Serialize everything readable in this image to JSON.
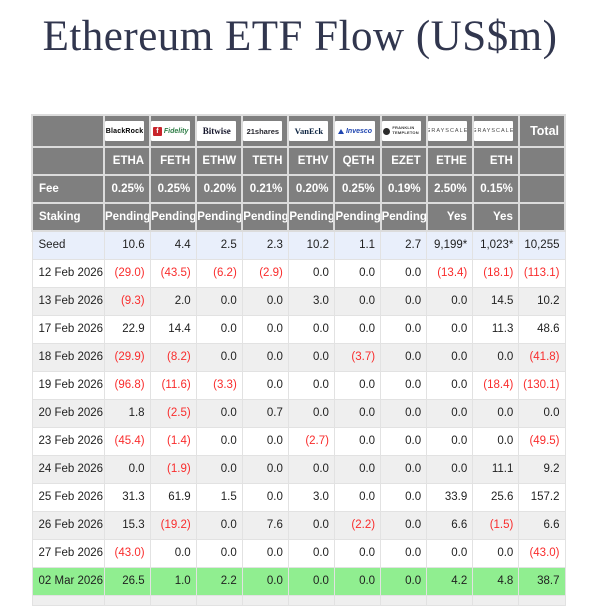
{
  "title": "Ethereum ETF Flow (US$m)",
  "colors": {
    "header_bg": "#7f7f7f",
    "seed_row_bg": "#e9effb",
    "alt_row_bg": "#efefef",
    "latest_row_bg": "#90ee90",
    "negative_text": "#f92c2c",
    "title_text": "#31364e"
  },
  "table": {
    "fee_label": "Fee",
    "staking_label": "Staking",
    "total_label": "Total",
    "columns": [
      {
        "provider": "BlackRock",
        "logo": "blackrock",
        "ticker": "ETHA",
        "fee": "0.25%",
        "staking": "Pending"
      },
      {
        "provider": "Fidelity",
        "logo": "fidelity",
        "ticker": "FETH",
        "fee": "0.25%",
        "staking": "Pending"
      },
      {
        "provider": "Bitwise",
        "logo": "bitwise",
        "ticker": "ETHW",
        "fee": "0.20%",
        "staking": "Pending"
      },
      {
        "provider": "21shares",
        "logo": "21shares",
        "ticker": "TETH",
        "fee": "0.21%",
        "staking": "Pending"
      },
      {
        "provider": "VanEck",
        "logo": "vaneck",
        "ticker": "ETHV",
        "fee": "0.20%",
        "staking": "Pending"
      },
      {
        "provider": "Invesco",
        "logo": "invesco",
        "ticker": "QETH",
        "fee": "0.25%",
        "staking": "Pending"
      },
      {
        "provider": "Franklin Templeton",
        "logo": "franklin",
        "ticker": "EZET",
        "fee": "0.19%",
        "staking": "Pending"
      },
      {
        "provider": "Grayscale",
        "logo": "grayscale",
        "ticker": "ETHE",
        "fee": "2.50%",
        "staking": "Yes"
      },
      {
        "provider": "Grayscale",
        "logo": "grayscale",
        "ticker": "ETH",
        "fee": "0.15%",
        "staking": "Yes"
      }
    ],
    "rows": [
      {
        "label": "Seed",
        "highlight": "seed",
        "values": [
          "10.6",
          "4.4",
          "2.5",
          "2.3",
          "10.2",
          "1.1",
          "2.7",
          "9,199*",
          "1,023*",
          "10,255"
        ]
      },
      {
        "label": "12 Feb 2026",
        "values": [
          "(29.0)",
          "(43.5)",
          "(6.2)",
          "(2.9)",
          "0.0",
          "0.0",
          "0.0",
          "(13.4)",
          "(18.1)",
          "(113.1)"
        ]
      },
      {
        "label": "13 Feb 2026",
        "values": [
          "(9.3)",
          "2.0",
          "0.0",
          "0.0",
          "3.0",
          "0.0",
          "0.0",
          "0.0",
          "14.5",
          "10.2"
        ]
      },
      {
        "label": "17 Feb 2026",
        "values": [
          "22.9",
          "14.4",
          "0.0",
          "0.0",
          "0.0",
          "0.0",
          "0.0",
          "0.0",
          "11.3",
          "48.6"
        ]
      },
      {
        "label": "18 Feb 2026",
        "values": [
          "(29.9)",
          "(8.2)",
          "0.0",
          "0.0",
          "0.0",
          "(3.7)",
          "0.0",
          "0.0",
          "0.0",
          "(41.8)"
        ]
      },
      {
        "label": "19 Feb 2026",
        "values": [
          "(96.8)",
          "(11.6)",
          "(3.3)",
          "0.0",
          "0.0",
          "0.0",
          "0.0",
          "0.0",
          "(18.4)",
          "(130.1)"
        ]
      },
      {
        "label": "20 Feb 2026",
        "values": [
          "1.8",
          "(2.5)",
          "0.0",
          "0.7",
          "0.0",
          "0.0",
          "0.0",
          "0.0",
          "0.0",
          "0.0"
        ]
      },
      {
        "label": "23 Feb 2026",
        "values": [
          "(45.4)",
          "(1.4)",
          "0.0",
          "0.0",
          "(2.7)",
          "0.0",
          "0.0",
          "0.0",
          "0.0",
          "(49.5)"
        ]
      },
      {
        "label": "24 Feb 2026",
        "values": [
          "0.0",
          "(1.9)",
          "0.0",
          "0.0",
          "0.0",
          "0.0",
          "0.0",
          "0.0",
          "11.1",
          "9.2"
        ]
      },
      {
        "label": "25 Feb 2026",
        "values": [
          "31.3",
          "61.9",
          "1.5",
          "0.0",
          "3.0",
          "0.0",
          "0.0",
          "33.9",
          "25.6",
          "157.2"
        ]
      },
      {
        "label": "26 Feb 2026",
        "values": [
          "15.3",
          "(19.2)",
          "0.0",
          "7.6",
          "0.0",
          "(2.2)",
          "0.0",
          "6.6",
          "(1.5)",
          "6.6"
        ]
      },
      {
        "label": "27 Feb 2026",
        "values": [
          "(43.0)",
          "0.0",
          "0.0",
          "0.0",
          "0.0",
          "0.0",
          "0.0",
          "0.0",
          "0.0",
          "(43.0)"
        ]
      },
      {
        "label": "02 Mar 2026",
        "highlight": "green",
        "values": [
          "26.5",
          "1.0",
          "2.2",
          "0.0",
          "0.0",
          "0.0",
          "0.0",
          "4.2",
          "4.8",
          "38.7"
        ]
      }
    ]
  }
}
